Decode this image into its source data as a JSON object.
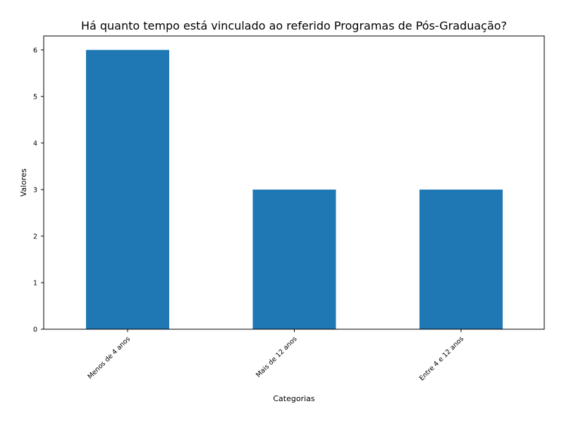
{
  "chart_data": {
    "type": "bar",
    "title": "Há quanto tempo está vinculado ao referido Programas de Pós-Graduação?",
    "xlabel": "Categorias",
    "ylabel": "Valores",
    "categories": [
      "Menos de 4 anos",
      "Mais de 12 anos",
      "Entre 4 e 12 anos"
    ],
    "values": [
      6,
      3,
      3
    ],
    "ylim": [
      0,
      6.3
    ],
    "yticks": [
      0,
      1,
      2,
      3,
      4,
      5,
      6
    ],
    "bar_color": "#1f77b4",
    "grid": false,
    "legend": "none"
  }
}
